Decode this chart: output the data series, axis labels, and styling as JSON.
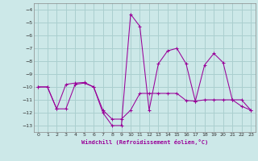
{
  "xlabel": "Windchill (Refroidissement éolien,°C)",
  "bg_color": "#cce8e8",
  "grid_color": "#aacfcf",
  "line_color": "#990099",
  "xlim": [
    -0.5,
    23.5
  ],
  "ylim": [
    -13.5,
    -3.5
  ],
  "xticks": [
    0,
    1,
    2,
    3,
    4,
    5,
    6,
    7,
    8,
    9,
    10,
    11,
    12,
    13,
    14,
    15,
    16,
    17,
    18,
    19,
    20,
    21,
    22,
    23
  ],
  "yticks": [
    -13,
    -12,
    -11,
    -10,
    -9,
    -8,
    -7,
    -6,
    -5,
    -4
  ],
  "series1": [
    [
      0,
      -10.0
    ],
    [
      1,
      -10.0
    ],
    [
      2,
      -11.7
    ],
    [
      3,
      -11.7
    ],
    [
      4,
      -9.8
    ],
    [
      5,
      -9.7
    ],
    [
      6,
      -10.0
    ],
    [
      7,
      -11.8
    ],
    [
      8,
      -12.5
    ],
    [
      9,
      -12.5
    ],
    [
      10,
      -11.8
    ],
    [
      11,
      -10.5
    ],
    [
      12,
      -10.5
    ],
    [
      13,
      -10.5
    ],
    [
      14,
      -10.5
    ],
    [
      15,
      -10.5
    ],
    [
      16,
      -11.05
    ],
    [
      17,
      -11.1
    ],
    [
      18,
      -11.0
    ],
    [
      19,
      -11.0
    ],
    [
      20,
      -11.0
    ],
    [
      21,
      -11.0
    ],
    [
      22,
      -11.5
    ],
    [
      23,
      -11.8
    ]
  ],
  "series2": [
    [
      0,
      -10.0
    ],
    [
      1,
      -10.0
    ],
    [
      2,
      -11.7
    ],
    [
      3,
      -9.8
    ],
    [
      4,
      -9.7
    ],
    [
      5,
      -9.65
    ],
    [
      6,
      -10.0
    ],
    [
      7,
      -12.0
    ],
    [
      8,
      -13.0
    ],
    [
      9,
      -13.0
    ],
    [
      10,
      -4.35
    ],
    [
      11,
      -5.3
    ],
    [
      12,
      -11.8
    ],
    [
      13,
      -8.2
    ],
    [
      14,
      -7.2
    ],
    [
      15,
      -7.0
    ],
    [
      16,
      -8.2
    ],
    [
      17,
      -11.1
    ],
    [
      18,
      -8.3
    ],
    [
      19,
      -7.4
    ],
    [
      20,
      -8.1
    ],
    [
      21,
      -11.0
    ],
    [
      22,
      -11.0
    ],
    [
      23,
      -11.8
    ]
  ]
}
